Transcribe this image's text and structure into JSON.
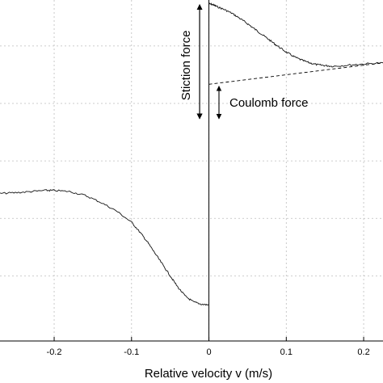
{
  "chart_data": {
    "type": "line",
    "title": "",
    "xlabel": "Relative velocity v (m/s)",
    "ylabel": "",
    "xlim": [
      -0.27,
      0.225
    ],
    "ylim": [
      -0.77,
      0.12
    ],
    "x_ticks": [
      -0.2,
      -0.1,
      0,
      0.1,
      0.2
    ],
    "x_tick_labels": [
      "-0.2",
      "-0.1",
      "0",
      "0.1",
      "0.2"
    ],
    "y_grid_values": [
      0,
      -0.15,
      -0.3,
      -0.45,
      -0.6
    ],
    "grid": true,
    "series": [
      {
        "x": [
          0.0,
          0.005,
          0.01,
          0.02,
          0.03,
          0.04,
          0.05,
          0.06,
          0.07,
          0.08,
          0.09,
          0.1,
          0.11,
          0.12,
          0.13,
          0.14,
          0.15,
          0.16,
          0.18,
          0.2,
          0.225
        ],
        "y": [
          0.11,
          0.108,
          0.103,
          0.095,
          0.085,
          0.072,
          0.058,
          0.043,
          0.028,
          0.013,
          -0.002,
          -0.016,
          -0.028,
          -0.037,
          -0.044,
          -0.049,
          -0.051,
          -0.053,
          -0.05,
          -0.047,
          -0.044
        ]
      },
      {
        "x": [
          -0.27,
          -0.25,
          -0.23,
          -0.21,
          -0.2,
          -0.18,
          -0.16,
          -0.14,
          -0.12,
          -0.1,
          -0.09,
          -0.08,
          -0.07,
          -0.06,
          -0.05,
          -0.04,
          -0.03,
          -0.02,
          -0.01,
          0.0
        ],
        "y": [
          -0.385,
          -0.383,
          -0.38,
          -0.377,
          -0.377,
          -0.38,
          -0.39,
          -0.408,
          -0.43,
          -0.46,
          -0.484,
          -0.51,
          -0.54,
          -0.57,
          -0.6,
          -0.63,
          -0.654,
          -0.668,
          -0.674,
          -0.676
        ]
      }
    ],
    "coulomb_line": {
      "x": [
        0.0,
        0.225
      ],
      "y": [
        -0.1,
        -0.044
      ]
    },
    "annotations": [
      {
        "text": "Stiction force",
        "orientation": "vertical",
        "from_y": 0.11,
        "to_y": -0.19,
        "x": -0.012
      },
      {
        "text": "Coulomb force",
        "from_y": -0.105,
        "to_y": -0.19,
        "x": 0.013
      }
    ]
  }
}
